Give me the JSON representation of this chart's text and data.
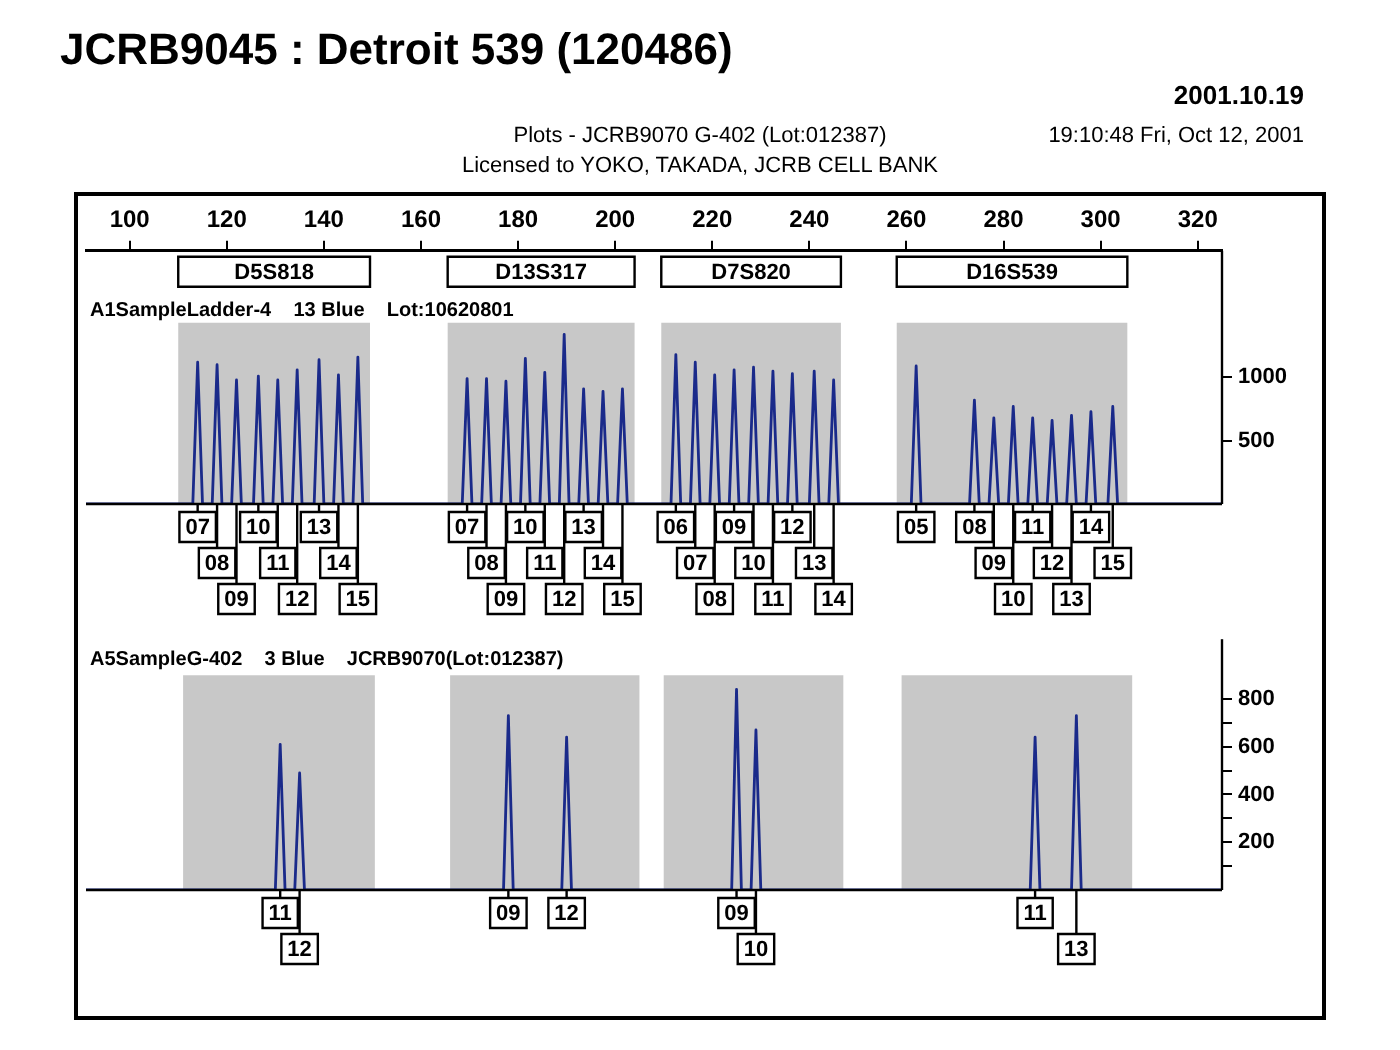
{
  "chart_data": [
    {
      "type": "line",
      "title": "JCRB9045 : Detroit 539 (120486)",
      "subtitle": "A1SampleLadder-4    13 Blue    Lot:10620801",
      "xlim": [
        91,
        325
      ],
      "xticks": [
        100,
        120,
        140,
        160,
        180,
        200,
        220,
        240,
        260,
        280,
        300,
        320
      ],
      "ylim": [
        0,
        2000
      ],
      "yticks": [
        500,
        1000
      ],
      "grid": false,
      "legend": false,
      "marker": "none",
      "series": [
        {
          "color": "#1a2a8a",
          "x": [
            91,
            113,
            114,
            115,
            117,
            118,
            119,
            121,
            122,
            123,
            125.5,
            126.5,
            127.5,
            129.5,
            130.5,
            131.5,
            133.5,
            134.5,
            135.5,
            138,
            139,
            140,
            142,
            143,
            144,
            146,
            147,
            148,
            168.5,
            169.5,
            170.5,
            172.5,
            173.5,
            174.5,
            176.5,
            177.5,
            178.5,
            180.5,
            181.5,
            182.5,
            184.5,
            185.5,
            186.5,
            188.5,
            189.5,
            190.5,
            192.5,
            193.5,
            194.5,
            196.5,
            197.5,
            198.5,
            200.5,
            201.5,
            202.5,
            211.5,
            212.5,
            213.5,
            215.5,
            216.5,
            217.5,
            219.5,
            220.5,
            221.5,
            223.5,
            224.5,
            225.5,
            227.5,
            228.5,
            229.5,
            231.5,
            232.5,
            233.5,
            235.5,
            236.5,
            237.5,
            240,
            241,
            242,
            244,
            245,
            246,
            261,
            262,
            263,
            273,
            274,
            275,
            277,
            278,
            279,
            281,
            282,
            283,
            285,
            286,
            287,
            289,
            290,
            291,
            293,
            294,
            295,
            297,
            298,
            299,
            301.5,
            302.5,
            303.5,
            325
          ],
          "values": [
            0,
            0,
            1120,
            0,
            0,
            1100,
            0,
            0,
            980,
            0,
            0,
            1010,
            0,
            0,
            980,
            0,
            0,
            1060,
            0,
            0,
            1140,
            0,
            0,
            1020,
            0,
            0,
            1160,
            0,
            0,
            990,
            0,
            0,
            990,
            0,
            0,
            970,
            0,
            0,
            1150,
            0,
            0,
            1040,
            0,
            0,
            1340,
            0,
            0,
            910,
            0,
            0,
            890,
            0,
            0,
            910,
            0,
            0,
            1180,
            0,
            0,
            1120,
            0,
            0,
            1020,
            0,
            0,
            1060,
            0,
            0,
            1080,
            0,
            0,
            1050,
            0,
            0,
            1030,
            0,
            0,
            1050,
            0,
            0,
            980,
            0,
            0,
            1090,
            0,
            0,
            820,
            0,
            0,
            680,
            0,
            0,
            770,
            0,
            0,
            680,
            0,
            0,
            660,
            0,
            0,
            700,
            0,
            0,
            730,
            0,
            0,
            770,
            0,
            0
          ]
        }
      ],
      "bands": [
        {
          "axis": "x",
          "from": 110,
          "to": 149.5,
          "label": "D5S818",
          "color": "#c8c8c8"
        },
        {
          "axis": "x",
          "from": 165.5,
          "to": 204,
          "label": "D13S317",
          "color": "#c8c8c8"
        },
        {
          "axis": "x",
          "from": 209.5,
          "to": 246.5,
          "label": "D7S820",
          "color": "#c8c8c8"
        },
        {
          "axis": "x",
          "from": 258,
          "to": 305.5,
          "label": "D16S539",
          "color": "#c8c8c8"
        }
      ],
      "annotations": [
        "2001.10.19",
        "Plots - JCRB9070 G-402 (Lot:012387)",
        "Licensed to YOKO, TAKADA, JCRB CELL BANK",
        "19:10:48 Fri, Oct 12, 2001",
        {
          "text": "07",
          "x": 114,
          "y": 0
        },
        {
          "text": "08",
          "x": 118,
          "y": 0
        },
        {
          "text": "09",
          "x": 122,
          "y": 0
        },
        {
          "text": "10",
          "x": 126.5,
          "y": 0
        },
        {
          "text": "11",
          "x": 130.5,
          "y": 0
        },
        {
          "text": "12",
          "x": 134.5,
          "y": 0
        },
        {
          "text": "13",
          "x": 139,
          "y": 0
        },
        {
          "text": "14",
          "x": 143,
          "y": 0
        },
        {
          "text": "15",
          "x": 147,
          "y": 0
        },
        {
          "text": "07",
          "x": 169.5,
          "y": 0
        },
        {
          "text": "08",
          "x": 173.5,
          "y": 0
        },
        {
          "text": "09",
          "x": 177.5,
          "y": 0
        },
        {
          "text": "10",
          "x": 181.5,
          "y": 0
        },
        {
          "text": "11",
          "x": 185.5,
          "y": 0
        },
        {
          "text": "12",
          "x": 189.5,
          "y": 0
        },
        {
          "text": "13",
          "x": 193.5,
          "y": 0
        },
        {
          "text": "14",
          "x": 197.5,
          "y": 0
        },
        {
          "text": "15",
          "x": 201.5,
          "y": 0
        },
        {
          "text": "06",
          "x": 212.5,
          "y": 0
        },
        {
          "text": "07",
          "x": 216.5,
          "y": 0
        },
        {
          "text": "08",
          "x": 220.5,
          "y": 0
        },
        {
          "text": "09",
          "x": 224.5,
          "y": 0
        },
        {
          "text": "10",
          "x": 228.5,
          "y": 0
        },
        {
          "text": "11",
          "x": 232.5,
          "y": 0
        },
        {
          "text": "12",
          "x": 236.5,
          "y": 0
        },
        {
          "text": "13",
          "x": 241,
          "y": 0
        },
        {
          "text": "14",
          "x": 245,
          "y": 0
        },
        {
          "text": "05",
          "x": 262,
          "y": 0
        },
        {
          "text": "08",
          "x": 274,
          "y": 0
        },
        {
          "text": "09",
          "x": 278,
          "y": 0
        },
        {
          "text": "10",
          "x": 282,
          "y": 0
        },
        {
          "text": "11",
          "x": 286,
          "y": 0
        },
        {
          "text": "12",
          "x": 290,
          "y": 0
        },
        {
          "text": "13",
          "x": 294,
          "y": 0
        },
        {
          "text": "14",
          "x": 298,
          "y": 0
        },
        {
          "text": "15",
          "x": 302.5,
          "y": 0
        }
      ]
    },
    {
      "type": "line",
      "subtitle": "A5SampleG-402    3 Blue    JCRB9070(Lot:012387)",
      "xlim": [
        91,
        325
      ],
      "ylim": [
        0,
        1050
      ],
      "yticks": [
        {
          "value": 100,
          "label": null
        },
        200,
        {
          "value": 300,
          "label": null
        },
        400,
        {
          "value": 500,
          "label": null
        },
        600,
        {
          "value": 700,
          "label": null
        },
        800
      ],
      "tick_labels": "y",
      "grid": false,
      "legend": false,
      "marker": "none",
      "series": [
        {
          "color": "#1a2a8a",
          "x": [
            91,
            130,
            131,
            132,
            134,
            135,
            136,
            177,
            178,
            179,
            189,
            190,
            191,
            224,
            225,
            226,
            228,
            229,
            230,
            285.5,
            286.5,
            287.5,
            294,
            295,
            296,
            325
          ],
          "values": [
            0,
            0,
            610,
            0,
            0,
            490,
            0,
            0,
            730,
            0,
            0,
            640,
            0,
            0,
            840,
            0,
            0,
            670,
            0,
            0,
            640,
            0,
            0,
            730,
            0,
            0
          ]
        }
      ],
      "bands": [
        {
          "axis": "x",
          "from": 111,
          "to": 150.5,
          "color": "#c8c8c8"
        },
        {
          "axis": "x",
          "from": 166,
          "to": 205,
          "color": "#c8c8c8"
        },
        {
          "axis": "x",
          "from": 210,
          "to": 247,
          "color": "#c8c8c8"
        },
        {
          "axis": "x",
          "from": 259,
          "to": 306.5,
          "color": "#c8c8c8"
        }
      ],
      "annotations": [
        {
          "text": "11",
          "x": 131,
          "y": 0
        },
        {
          "text": "12",
          "x": 135,
          "y": 0
        },
        {
          "text": "09",
          "x": 178,
          "y": 0
        },
        {
          "text": "12",
          "x": 190,
          "y": 0
        },
        {
          "text": "09",
          "x": 225,
          "y": 0
        },
        {
          "text": "10",
          "x": 229,
          "y": 0
        },
        {
          "text": "11",
          "x": 286.5,
          "y": 0
        },
        {
          "text": "13",
          "x": 295,
          "y": 0
        }
      ]
    }
  ]
}
